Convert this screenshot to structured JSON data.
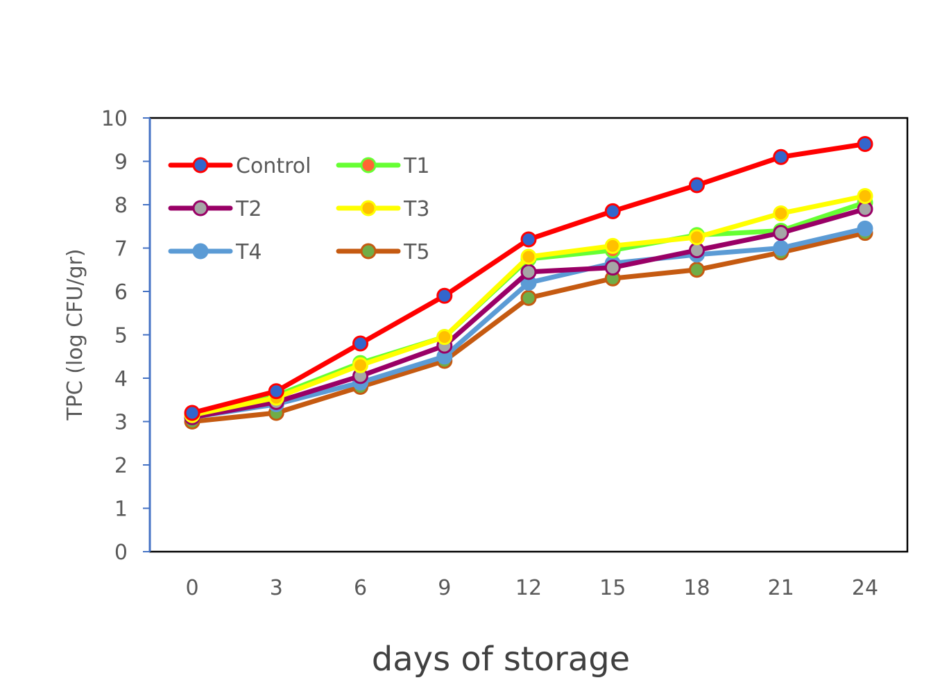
{
  "chart_data": {
    "type": "line",
    "title": "",
    "xlabel": "days of storage",
    "ylabel": "TPC (log CFU/gr)",
    "x": [
      0,
      3,
      6,
      9,
      12,
      15,
      18,
      21,
      24
    ],
    "xticks": [
      "0",
      "3",
      "6",
      "9",
      "12",
      "15",
      "18",
      "21",
      "24"
    ],
    "yticks": [
      "0",
      "1",
      "2",
      "3",
      "4",
      "5",
      "6",
      "7",
      "8",
      "9",
      "10"
    ],
    "ylim": [
      0,
      10
    ],
    "grid": false,
    "legend_position": "top-left",
    "series": [
      {
        "name": "Control",
        "values": [
          3.2,
          3.7,
          4.8,
          5.9,
          7.2,
          7.85,
          8.45,
          9.1,
          9.4
        ],
        "color": "#ff0000",
        "marker_color": "#3366cc"
      },
      {
        "name": "T1",
        "values": [
          3.15,
          3.6,
          4.35,
          4.95,
          6.75,
          6.95,
          7.3,
          7.4,
          8.05
        ],
        "color": "#66ff33",
        "marker_color": "#ff6633"
      },
      {
        "name": "T2",
        "values": [
          3.1,
          3.45,
          4.05,
          4.75,
          6.45,
          6.55,
          6.95,
          7.35,
          7.9
        ],
        "color": "#990066",
        "marker_color": "#a6a6a6"
      },
      {
        "name": "T3",
        "values": [
          3.15,
          3.55,
          4.3,
          4.95,
          6.8,
          7.05,
          7.25,
          7.8,
          8.2
        ],
        "color": "#ffff00",
        "marker_color": "#ffc000"
      },
      {
        "name": "T4",
        "values": [
          3.1,
          3.4,
          3.9,
          4.5,
          6.2,
          6.65,
          6.85,
          7.0,
          7.45
        ],
        "color": "#5b9bd5",
        "marker_color": "#5b9bd5"
      },
      {
        "name": "T5",
        "values": [
          3.0,
          3.2,
          3.8,
          4.4,
          5.85,
          6.3,
          6.5,
          6.9,
          7.35
        ],
        "color": "#c55a11",
        "marker_color": "#70ad47"
      }
    ]
  }
}
